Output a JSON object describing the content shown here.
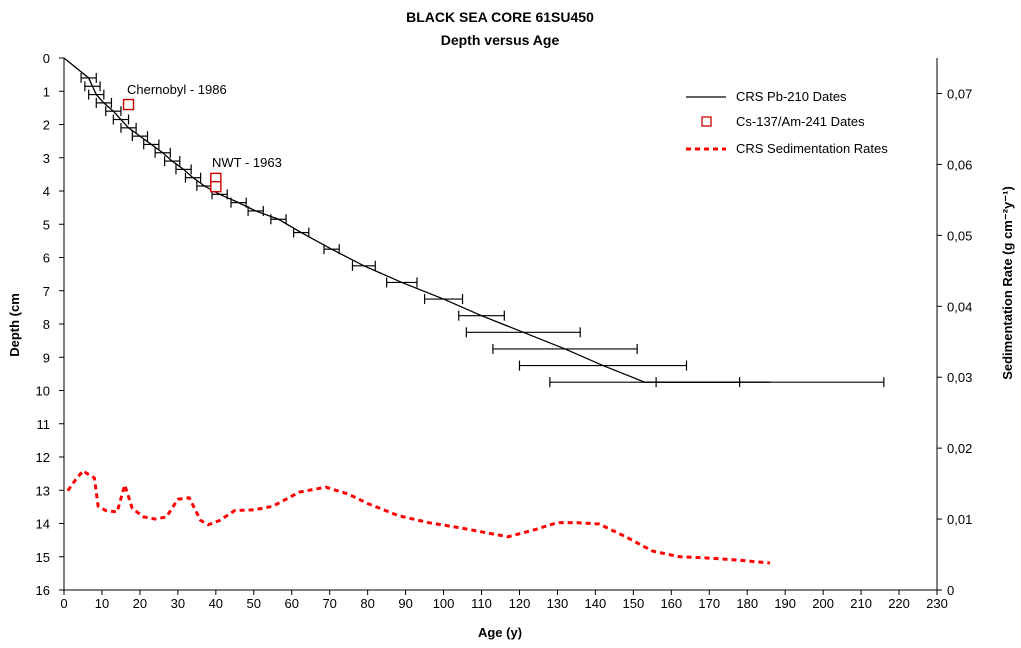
{
  "chart_data": {
    "type": "line",
    "title": "BLACK SEA CORE 61SU450",
    "subtitle": "Depth versus Age",
    "xlabel": "Age (y)",
    "ylabel": "Depth (cm",
    "y2label": "Sedimentation Rate (g cm⁻²y⁻¹)",
    "xlim": [
      0,
      230
    ],
    "ylim": [
      0,
      16
    ],
    "y_inverted": true,
    "y2lim": [
      0,
      0.075
    ],
    "x_ticks": [
      "0",
      "10",
      "20",
      "30",
      "40",
      "50",
      "60",
      "70",
      "80",
      "90",
      "100",
      "110",
      "120",
      "130",
      "140",
      "150",
      "160",
      "170",
      "180",
      "190",
      "200",
      "210",
      "220",
      "230"
    ],
    "y_ticks": [
      "0",
      "1",
      "2",
      "3",
      "4",
      "5",
      "6",
      "7",
      "8",
      "9",
      "10",
      "11",
      "12",
      "13",
      "14",
      "15",
      "16"
    ],
    "y2_ticks": [
      "0",
      "0,01",
      "0,02",
      "0,03",
      "0,04",
      "0,05",
      "0,06",
      "0,07"
    ],
    "legend_position": "top-right",
    "series": [
      {
        "name": "CRS Pb-210 Dates",
        "color": "#000000",
        "style": "line-with-x-error-bars",
        "points": [
          {
            "x": 0,
            "y": 0.0
          },
          {
            "x": 6.5,
            "y": 0.6,
            "xerr": 2
          },
          {
            "x": 7.5,
            "y": 0.85,
            "xerr": 2
          },
          {
            "x": 8.5,
            "y": 1.1,
            "xerr": 2
          },
          {
            "x": 10.5,
            "y": 1.35,
            "xerr": 2
          },
          {
            "x": 13,
            "y": 1.6,
            "xerr": 2
          },
          {
            "x": 15,
            "y": 1.85,
            "xerr": 2
          },
          {
            "x": 17,
            "y": 2.1,
            "xerr": 2
          },
          {
            "x": 20,
            "y": 2.35,
            "xerr": 2
          },
          {
            "x": 23,
            "y": 2.6,
            "xerr": 2
          },
          {
            "x": 26,
            "y": 2.85,
            "xerr": 2
          },
          {
            "x": 28.5,
            "y": 3.1,
            "xerr": 2
          },
          {
            "x": 31.5,
            "y": 3.35,
            "xerr": 2
          },
          {
            "x": 34,
            "y": 3.6,
            "xerr": 2
          },
          {
            "x": 37,
            "y": 3.85,
            "xerr": 2
          },
          {
            "x": 41,
            "y": 4.1,
            "xerr": 2
          },
          {
            "x": 46,
            "y": 4.35,
            "xerr": 2
          },
          {
            "x": 50.5,
            "y": 4.6,
            "xerr": 2
          },
          {
            "x": 56.5,
            "y": 4.85,
            "xerr": 2
          },
          {
            "x": 62.5,
            "y": 5.25,
            "xerr": 2
          },
          {
            "x": 70.5,
            "y": 5.75,
            "xerr": 2
          },
          {
            "x": 79,
            "y": 6.25,
            "xerr": 3
          },
          {
            "x": 89,
            "y": 6.75,
            "xerr": 4
          },
          {
            "x": 100,
            "y": 7.25,
            "xerr": 5
          },
          {
            "x": 110,
            "y": 7.75,
            "xerr": 6
          },
          {
            "x": 121,
            "y": 8.25,
            "xerr": 15
          },
          {
            "x": 132,
            "y": 8.75,
            "xerr": 19
          },
          {
            "x": 142,
            "y": 9.25,
            "xerr": 22
          },
          {
            "x": 153,
            "y": 9.75,
            "xerr": 25
          },
          {
            "x": 158,
            "y": 9.75
          },
          {
            "x": 186,
            "y": 9.75,
            "xerr": 30
          }
        ]
      },
      {
        "name": "Cs-137/Am-241 Dates",
        "color": "#cc0000",
        "style": "open-square-markers",
        "points": [
          {
            "x": 17,
            "y": 1.4
          },
          {
            "x": 40,
            "y": 3.62
          },
          {
            "x": 40,
            "y": 3.87
          }
        ]
      },
      {
        "name": "CRS Sedimentation Rates",
        "color": "#ff0000",
        "style": "dashed-line",
        "axis": "right",
        "points": [
          {
            "x": 1,
            "y": 0.014
          },
          {
            "x": 3,
            "y": 0.0155
          },
          {
            "x": 5,
            "y": 0.0168
          },
          {
            "x": 7,
            "y": 0.0161
          },
          {
            "x": 8,
            "y": 0.0158
          },
          {
            "x": 9,
            "y": 0.0118
          },
          {
            "x": 11,
            "y": 0.0112
          },
          {
            "x": 14,
            "y": 0.011
          },
          {
            "x": 16,
            "y": 0.0148
          },
          {
            "x": 18,
            "y": 0.0115
          },
          {
            "x": 21,
            "y": 0.0103
          },
          {
            "x": 24,
            "y": 0.01
          },
          {
            "x": 27,
            "y": 0.0103
          },
          {
            "x": 30,
            "y": 0.0128
          },
          {
            "x": 33,
            "y": 0.013
          },
          {
            "x": 36,
            "y": 0.0098
          },
          {
            "x": 38,
            "y": 0.0092
          },
          {
            "x": 41,
            "y": 0.0098
          },
          {
            "x": 45,
            "y": 0.0112
          },
          {
            "x": 50,
            "y": 0.0113
          },
          {
            "x": 55,
            "y": 0.0118
          },
          {
            "x": 62,
            "y": 0.0138
          },
          {
            "x": 69,
            "y": 0.0145
          },
          {
            "x": 75,
            "y": 0.0135
          },
          {
            "x": 80,
            "y": 0.0122
          },
          {
            "x": 88,
            "y": 0.0105
          },
          {
            "x": 96,
            "y": 0.0095
          },
          {
            "x": 104,
            "y": 0.0088
          },
          {
            "x": 110,
            "y": 0.0082
          },
          {
            "x": 117,
            "y": 0.0075
          },
          {
            "x": 124,
            "y": 0.0085
          },
          {
            "x": 130,
            "y": 0.0095
          },
          {
            "x": 135,
            "y": 0.0095
          },
          {
            "x": 141,
            "y": 0.0093
          },
          {
            "x": 148,
            "y": 0.0075
          },
          {
            "x": 155,
            "y": 0.0055
          },
          {
            "x": 162,
            "y": 0.0047
          },
          {
            "x": 170,
            "y": 0.0045
          },
          {
            "x": 178,
            "y": 0.0042
          },
          {
            "x": 186,
            "y": 0.0038
          }
        ]
      }
    ],
    "annotations": [
      {
        "text": "Chernobyl - 1986",
        "x": 17,
        "y": 0.9
      },
      {
        "text": "NWT - 1963",
        "x": 39,
        "y": 3.15
      }
    ]
  }
}
